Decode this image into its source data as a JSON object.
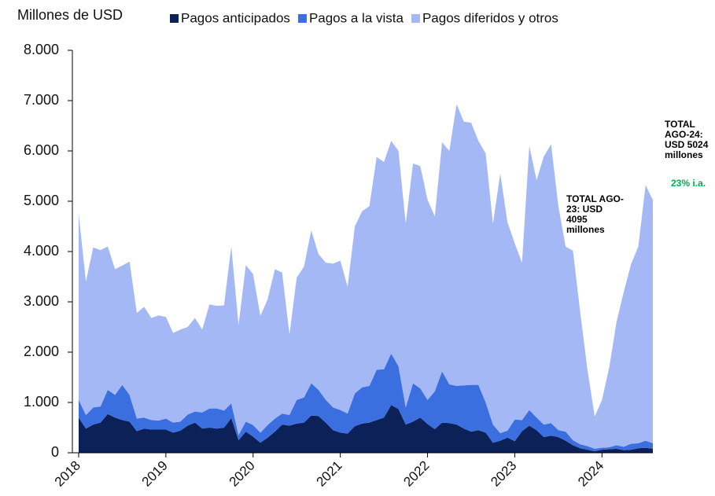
{
  "chart_data": {
    "type": "stacked_area",
    "y_axis_label": "Millones de USD",
    "categories": [
      "2018",
      null,
      null,
      null,
      null,
      null,
      null,
      null,
      null,
      null,
      null,
      null,
      "2019",
      null,
      null,
      null,
      null,
      null,
      null,
      null,
      null,
      null,
      null,
      null,
      "2020",
      null,
      null,
      null,
      null,
      null,
      null,
      null,
      null,
      null,
      null,
      null,
      "2021",
      null,
      null,
      null,
      null,
      null,
      null,
      null,
      null,
      null,
      null,
      null,
      "2022",
      null,
      null,
      null,
      null,
      null,
      null,
      null,
      null,
      null,
      null,
      null,
      "2023",
      null,
      null,
      null,
      null,
      null,
      null,
      null,
      null,
      null,
      null,
      null,
      "2024",
      null,
      null,
      null,
      null,
      null,
      null,
      null
    ],
    "series": [
      {
        "name": "Pagos anticipados",
        "color": "#0b2157",
        "values": [
          700,
          480,
          560,
          600,
          770,
          700,
          650,
          620,
          430,
          480,
          460,
          460,
          460,
          400,
          440,
          540,
          600,
          480,
          500,
          480,
          500,
          690,
          250,
          420,
          320,
          200,
          300,
          420,
          560,
          540,
          580,
          600,
          740,
          730,
          600,
          450,
          400,
          380,
          530,
          580,
          600,
          650,
          700,
          950,
          870,
          560,
          620,
          700,
          570,
          470,
          600,
          590,
          560,
          480,
          420,
          450,
          400,
          200,
          240,
          300,
          230,
          430,
          540,
          450,
          310,
          340,
          310,
          240,
          150,
          90,
          60,
          30,
          60,
          70,
          80,
          50,
          60,
          90,
          100,
          80
        ]
      },
      {
        "name": "Pagos a la vista",
        "color": "#3b6fe0",
        "values": [
          350,
          270,
          340,
          320,
          480,
          450,
          700,
          530,
          250,
          220,
          190,
          180,
          220,
          200,
          180,
          220,
          220,
          320,
          380,
          400,
          340,
          290,
          100,
          200,
          230,
          200,
          250,
          260,
          220,
          210,
          470,
          500,
          640,
          520,
          450,
          450,
          450,
          400,
          650,
          720,
          730,
          1000,
          960,
          1020,
          850,
          340,
          760,
          580,
          480,
          750,
          1020,
          770,
          770,
          860,
          930,
          900,
          600,
          360,
          150,
          140,
          430,
          220,
          310,
          250,
          250,
          250,
          140,
          180,
          100,
          80,
          70,
          50,
          40,
          40,
          70,
          70,
          120,
          100,
          140,
          110
        ]
      },
      {
        "name": "Pagos diferidos y otros",
        "color": "#a4b8f5",
        "values": [
          3700,
          2650,
          3180,
          3110,
          2850,
          2500,
          2370,
          2650,
          2100,
          2200,
          2030,
          2090,
          2020,
          1780,
          1830,
          1740,
          1860,
          1650,
          2070,
          2040,
          2090,
          3120,
          2190,
          3110,
          3000,
          2320,
          2500,
          2970,
          2800,
          1600,
          2430,
          2600,
          3040,
          2700,
          2730,
          2860,
          2970,
          2520,
          3320,
          3500,
          3570,
          4230,
          4120,
          4230,
          4280,
          3650,
          4370,
          4420,
          3980,
          3480,
          4550,
          4640,
          5600,
          5240,
          5210,
          4850,
          4950,
          3990,
          5160,
          4140,
          3500,
          3130,
          5250,
          4720,
          5330,
          5540,
          4450,
          3675,
          3770,
          2630,
          1520,
          640,
          950,
          1590,
          2450,
          3080,
          3570,
          3910,
          5080,
          4834
        ]
      }
    ],
    "ylim": [
      0,
      8000
    ],
    "yticks": [
      0,
      {
        "value": 1000,
        "label": "1.000"
      },
      {
        "value": 2000,
        "label": "2.000"
      },
      {
        "value": 3000,
        "label": "3.000"
      },
      {
        "value": 4000,
        "label": "4.000"
      },
      {
        "value": 5000,
        "label": "5.000"
      },
      {
        "value": 6000,
        "label": "6.000"
      },
      {
        "value": 7000,
        "label": "7.000"
      },
      {
        "value": 8000,
        "label": "8.000"
      }
    ],
    "annotations": [
      "TOTAL AGO-23: USD 4095 millones",
      "TOTAL AGO-24: USD 5024 millones",
      "23% i.a."
    ]
  }
}
